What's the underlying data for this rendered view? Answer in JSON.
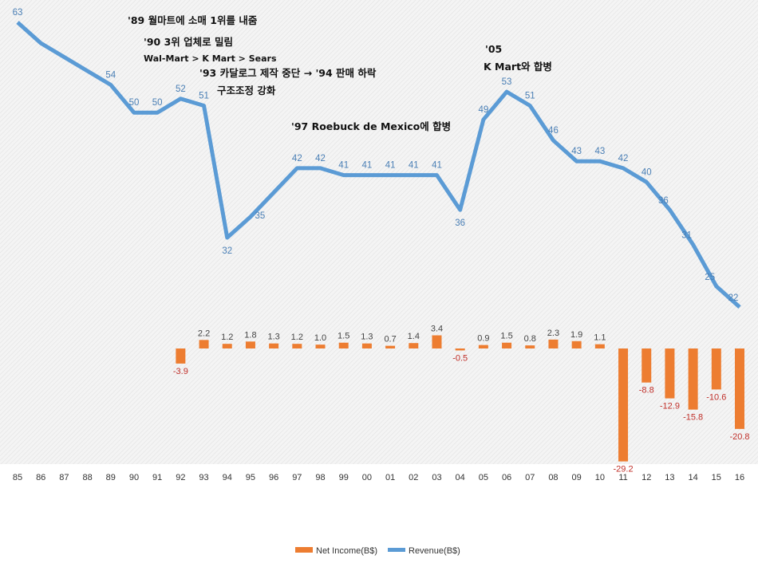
{
  "chart_data": {
    "type": "bar+line",
    "categories": [
      "85",
      "86",
      "87",
      "88",
      "89",
      "90",
      "91",
      "92",
      "93",
      "94",
      "95",
      "96",
      "97",
      "98",
      "99",
      "00",
      "01",
      "02",
      "03",
      "04",
      "05",
      "06",
      "07",
      "08",
      "09",
      "10",
      "11",
      "12",
      "13",
      "14",
      "15",
      "16"
    ],
    "series": [
      {
        "name": "Net Income(B$)",
        "type": "bar",
        "color": "#ed7d31",
        "values": [
          null,
          null,
          null,
          null,
          null,
          null,
          null,
          -3.9,
          2.2,
          1.2,
          1.8,
          1.3,
          1.2,
          1.0,
          1.5,
          1.3,
          0.7,
          1.4,
          3.4,
          -0.5,
          0.9,
          1.5,
          0.8,
          2.3,
          1.9,
          1.1,
          -29.2,
          -8.8,
          -12.9,
          -15.8,
          -10.6,
          -20.8
        ]
      },
      {
        "name": "Revenue(B$)",
        "type": "line",
        "color": "#5b9bd5",
        "values": [
          63,
          60,
          58,
          56,
          54,
          50,
          50,
          52,
          51,
          32,
          35,
          38.5,
          42,
          42,
          41,
          41,
          41,
          41,
          41,
          36,
          49,
          53,
          51,
          46,
          43,
          43,
          42,
          40,
          36,
          31,
          25,
          22
        ],
        "labeled": [
          true,
          false,
          false,
          false,
          true,
          true,
          true,
          true,
          true,
          true,
          true,
          false,
          true,
          true,
          true,
          true,
          true,
          true,
          true,
          true,
          true,
          true,
          true,
          true,
          true,
          true,
          true,
          true,
          true,
          true,
          true,
          true
        ]
      }
    ],
    "annotations": [
      "'89 월마트에 소매 1위를 내줌",
      "'90 3위 업체로 밀림",
      "Wal-Mart > K Mart > Sears",
      "'93 카달로그 제작 중단 → '94 판매 하락",
      "구조조정 강화",
      "'97 Roebuck de Mexico에 합병",
      "'05",
      "K Mart와 합병"
    ],
    "legend": {
      "position": "bottom",
      "items": [
        "Net Income(B$)",
        "Revenue(B$)"
      ]
    },
    "grid": false
  }
}
